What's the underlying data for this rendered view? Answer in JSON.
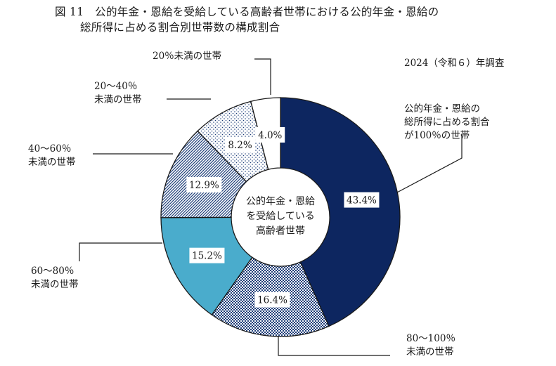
{
  "figure": {
    "title_line1": "図 11　公的年金・恩給を受給している高齢者世帯における公的年金・恩給の",
    "title_line2": "総所得に占める割合別世帯数の構成割合",
    "survey_year": "2024（令和６）年調査"
  },
  "chart_data": {
    "type": "pie",
    "center_label": [
      "公的年金・恩給",
      "を受給している",
      "高齢者世帯"
    ],
    "slices": [
      {
        "label": [
          "公的年金・恩給の",
          "総所得に占める割合",
          "が100％の世帯"
        ],
        "value": 43.4,
        "display": "43.4%",
        "color": "#0d2660",
        "pattern": "solid"
      },
      {
        "label": [
          "80〜100％",
          "未満の世帯"
        ],
        "value": 16.4,
        "display": "16.4%",
        "color": "#1f3f7a",
        "pattern": "checker"
      },
      {
        "label": [
          "60〜80％",
          "未満の世帯"
        ],
        "value": 15.2,
        "display": "15.2%",
        "color": "#4aaccc",
        "pattern": "solid"
      },
      {
        "label": [
          "40〜60％",
          "未満の世帯"
        ],
        "value": 12.9,
        "display": "12.9%",
        "color": "#1f3f7a",
        "pattern": "diagonal"
      },
      {
        "label": [
          "20〜40％",
          "未満の世帯"
        ],
        "value": 8.2,
        "display": "8.2%",
        "color": "#1f3f7a",
        "pattern": "dots"
      },
      {
        "label": [
          "20％未満の世帯"
        ],
        "value": 4.0,
        "display": "4.0%",
        "color": "#ffffff",
        "pattern": "solid"
      }
    ]
  }
}
